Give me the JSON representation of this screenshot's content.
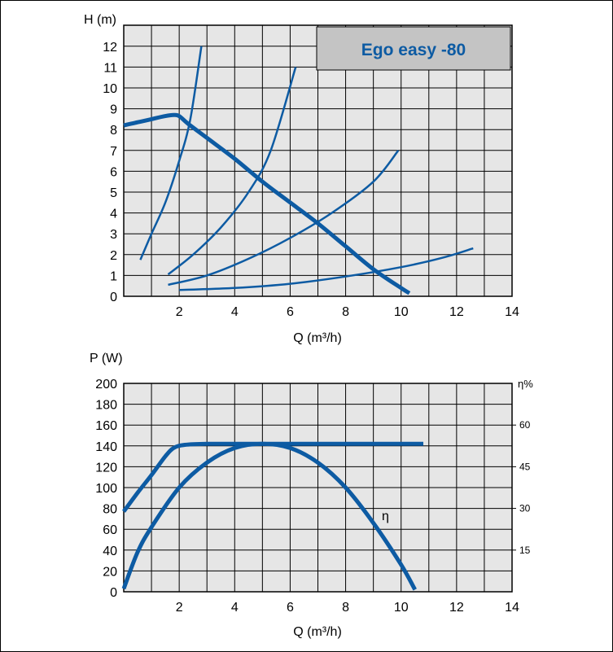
{
  "colors": {
    "curve": "#0d5ba3",
    "grid_bg": "#e6e6e6",
    "title_box": "#c4c4c4",
    "title_text": "#0d5ba3"
  },
  "top_chart_title": "Ego easy -80",
  "chart_data": [
    {
      "type": "line",
      "title": "Ego easy -80",
      "xlabel": "Q (m³/h)",
      "ylabel": "H (m)",
      "xlim": [
        0,
        14
      ],
      "ylim": [
        0,
        12.8
      ],
      "x_ticks": [
        "2",
        "4",
        "6",
        "8",
        "10",
        "12",
        "14"
      ],
      "y_ticks": [
        "0",
        "1",
        "2",
        "3",
        "4",
        "5",
        "6",
        "7",
        "8",
        "9",
        "10",
        "11",
        "12"
      ],
      "grid": true,
      "series": [
        {
          "role": "pump-curve",
          "x": [
            0,
            0.5,
            1,
            1.5,
            1.8,
            2.0,
            2.3,
            3,
            4,
            5,
            6,
            7,
            8,
            9,
            10,
            10.3
          ],
          "y": [
            8.2,
            8.35,
            8.5,
            8.65,
            8.7,
            8.65,
            8.3,
            7.6,
            6.6,
            5.5,
            4.5,
            3.5,
            2.4,
            1.3,
            0.4,
            0.15
          ]
        },
        {
          "role": "system-curve",
          "x": [
            0.6,
            1.0,
            1.5,
            2.0,
            2.4,
            2.8
          ],
          "y": [
            1.75,
            3.0,
            4.5,
            6.5,
            8.5,
            12.0
          ]
        },
        {
          "role": "system-curve",
          "x": [
            1.6,
            2.5,
            3.5,
            4.5,
            5.3,
            6.2
          ],
          "y": [
            1.05,
            2.0,
            3.3,
            5.0,
            7.0,
            11.0
          ]
        },
        {
          "role": "system-curve",
          "x": [
            1.6,
            3,
            4.5,
            6,
            7.5,
            9,
            9.9
          ],
          "y": [
            0.55,
            1.0,
            1.8,
            2.8,
            4.0,
            5.5,
            7.0
          ]
        },
        {
          "role": "system-curve",
          "x": [
            2.0,
            4,
            6,
            8,
            10,
            11.5,
            12.6
          ],
          "y": [
            0.3,
            0.4,
            0.6,
            0.95,
            1.4,
            1.85,
            2.3
          ]
        }
      ]
    },
    {
      "type": "line",
      "xlabel": "Q (m³/h)",
      "ylabel": "P (W)",
      "y2label": "η%",
      "xlim": [
        0,
        14
      ],
      "ylim": [
        0,
        200
      ],
      "y2_ticks": [
        "15",
        "30",
        "45",
        "60"
      ],
      "x_ticks": [
        "2",
        "4",
        "6",
        "8",
        "10",
        "12",
        "14"
      ],
      "y_ticks": [
        "0",
        "20",
        "40",
        "60",
        "80",
        "100",
        "120",
        "140",
        "160",
        "180",
        "200"
      ],
      "grid": true,
      "annotation": "η",
      "series": [
        {
          "role": "power",
          "x": [
            0,
            0.5,
            1,
            1.5,
            1.8,
            2.2,
            3,
            5,
            8,
            10.8
          ],
          "y": [
            77,
            95,
            112,
            130,
            138,
            141,
            142,
            142,
            142,
            142
          ]
        },
        {
          "role": "efficiency",
          "x": [
            0,
            0.5,
            1,
            2,
            3,
            4,
            5,
            6,
            7,
            8,
            9,
            10,
            10.5
          ],
          "y": [
            3,
            38,
            62,
            100,
            124,
            138,
            142,
            138,
            124,
            100,
            66,
            26,
            2
          ]
        }
      ]
    }
  ]
}
